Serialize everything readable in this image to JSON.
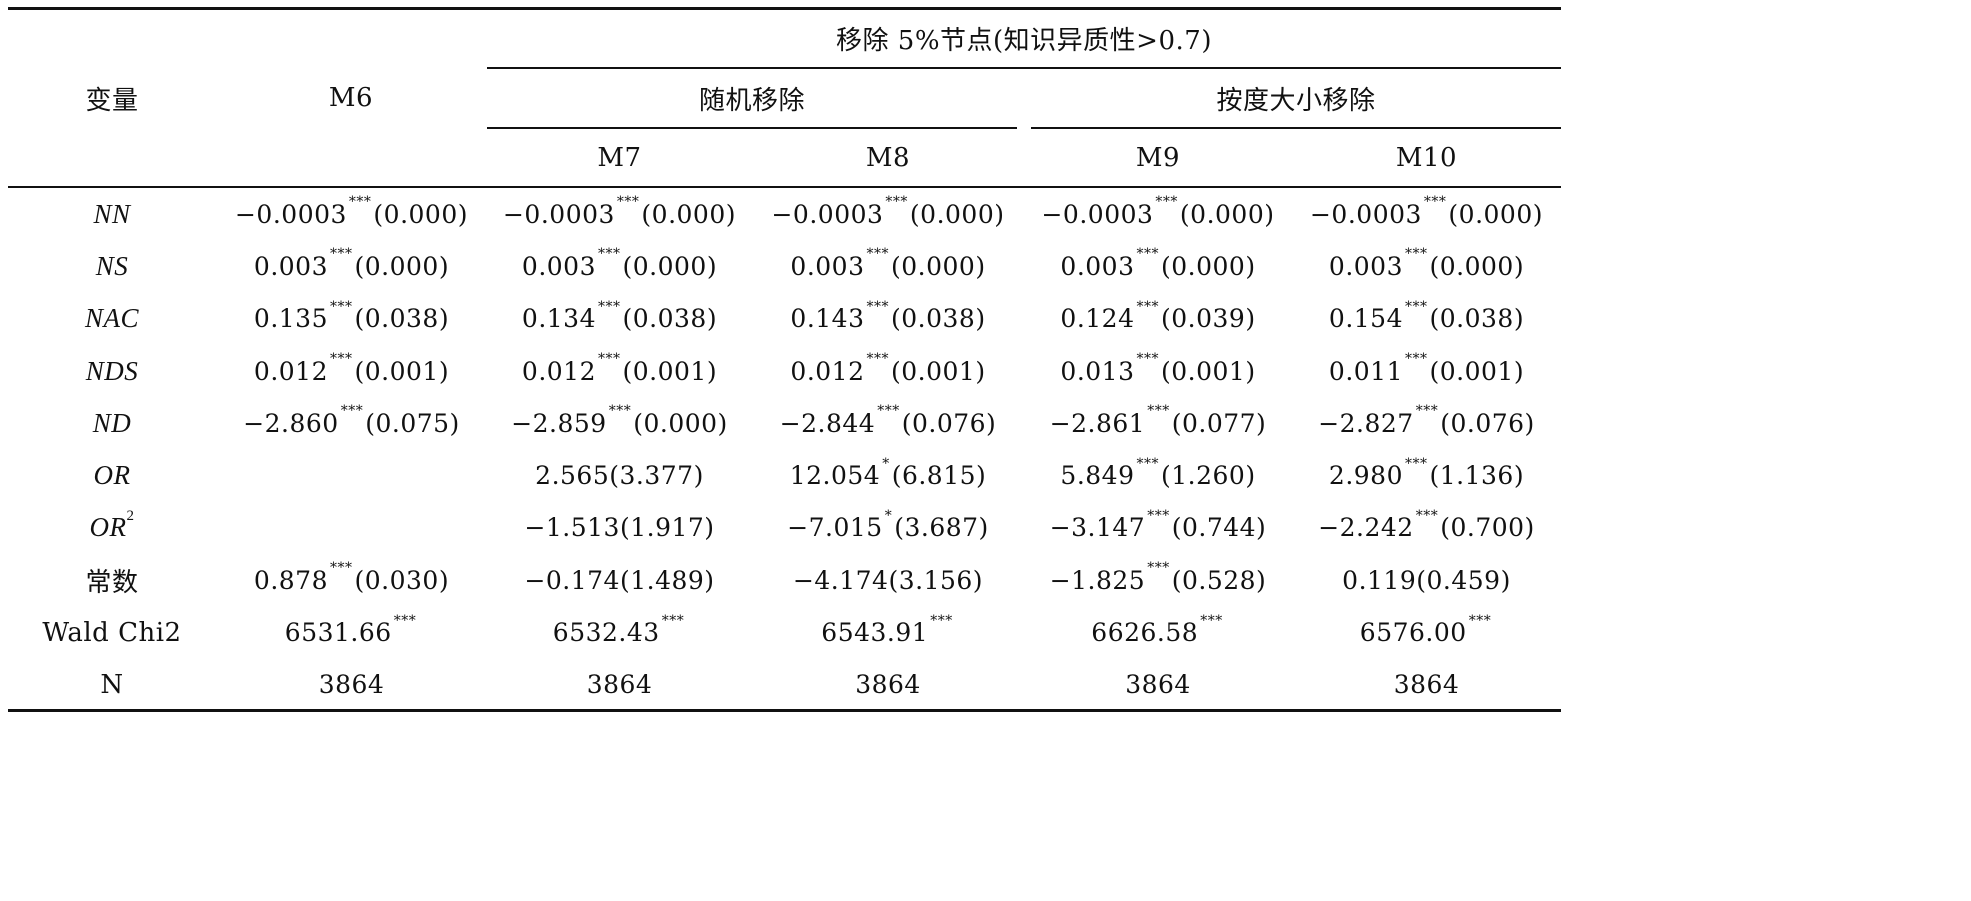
{
  "header": {
    "variable_label": "变量",
    "m6_label": "M6",
    "group_title": "移除 5%节点(知识异质性>0.7)",
    "random_label": "随机移除",
    "degree_label": "按度大小移除",
    "models": [
      "M7",
      "M8",
      "M9",
      "M10"
    ]
  },
  "rows": [
    {
      "var": "NN",
      "italic": true,
      "sup": "",
      "cells": [
        {
          "v": "−0.0003",
          "s": "***",
          "p": "(0.000)"
        },
        {
          "v": "−0.0003",
          "s": "***",
          "p": "(0.000)"
        },
        {
          "v": "−0.0003",
          "s": "***",
          "p": "(0.000)"
        },
        {
          "v": "−0.0003",
          "s": "***",
          "p": "(0.000)"
        },
        {
          "v": "−0.0003",
          "s": "***",
          "p": "(0.000)"
        }
      ]
    },
    {
      "var": "NS",
      "italic": true,
      "sup": "",
      "cells": [
        {
          "v": "0.003",
          "s": "***",
          "p": "(0.000)"
        },
        {
          "v": "0.003",
          "s": "***",
          "p": "(0.000)"
        },
        {
          "v": "0.003",
          "s": "***",
          "p": "(0.000)"
        },
        {
          "v": "0.003",
          "s": "***",
          "p": "(0.000)"
        },
        {
          "v": "0.003",
          "s": "***",
          "p": "(0.000)"
        }
      ]
    },
    {
      "var": "NAC",
      "italic": true,
      "sup": "",
      "cells": [
        {
          "v": "0.135",
          "s": "***",
          "p": "(0.038)"
        },
        {
          "v": "0.134",
          "s": "***",
          "p": "(0.038)"
        },
        {
          "v": "0.143",
          "s": "***",
          "p": "(0.038)"
        },
        {
          "v": "0.124",
          "s": "***",
          "p": "(0.039)"
        },
        {
          "v": "0.154",
          "s": "***",
          "p": "(0.038)"
        }
      ]
    },
    {
      "var": "NDS",
      "italic": true,
      "sup": "",
      "cells": [
        {
          "v": "0.012",
          "s": "***",
          "p": "(0.001)"
        },
        {
          "v": "0.012",
          "s": "***",
          "p": "(0.001)"
        },
        {
          "v": "0.012",
          "s": "***",
          "p": "(0.001)"
        },
        {
          "v": "0.013",
          "s": "***",
          "p": "(0.001)"
        },
        {
          "v": "0.011",
          "s": "***",
          "p": "(0.001)"
        }
      ]
    },
    {
      "var": "ND",
      "italic": true,
      "sup": "",
      "cells": [
        {
          "v": "−2.860",
          "s": "***",
          "p": "(0.075)"
        },
        {
          "v": "−2.859",
          "s": "***",
          "p": "(0.000)"
        },
        {
          "v": "−2.844",
          "s": "***",
          "p": "(0.076)"
        },
        {
          "v": "−2.861",
          "s": "***",
          "p": "(0.077)"
        },
        {
          "v": "−2.827",
          "s": "***",
          "p": "(0.076)"
        }
      ]
    },
    {
      "var": "OR",
      "italic": true,
      "sup": "",
      "cells": [
        {
          "v": "",
          "s": "",
          "p": ""
        },
        {
          "v": "2.565",
          "s": "",
          "p": "(3.377)"
        },
        {
          "v": "12.054",
          "s": "*",
          "p": "(6.815)"
        },
        {
          "v": "5.849",
          "s": "***",
          "p": "(1.260)"
        },
        {
          "v": "2.980",
          "s": "***",
          "p": "(1.136)"
        }
      ]
    },
    {
      "var": "OR",
      "italic": true,
      "sup": "2",
      "cells": [
        {
          "v": "",
          "s": "",
          "p": ""
        },
        {
          "v": "−1.513",
          "s": "",
          "p": "(1.917)"
        },
        {
          "v": "−7.015",
          "s": "*",
          "p": "(3.687)"
        },
        {
          "v": "−3.147",
          "s": "***",
          "p": "(0.744)"
        },
        {
          "v": "−2.242",
          "s": "***",
          "p": "(0.700)"
        }
      ]
    },
    {
      "var": "常数",
      "italic": false,
      "sup": "",
      "cells": [
        {
          "v": "0.878",
          "s": "***",
          "p": "(0.030)"
        },
        {
          "v": "−0.174",
          "s": "",
          "p": "(1.489)"
        },
        {
          "v": "−4.174",
          "s": "",
          "p": "(3.156)"
        },
        {
          "v": "−1.825",
          "s": "***",
          "p": "(0.528)"
        },
        {
          "v": "0.119",
          "s": "",
          "p": "(0.459)"
        }
      ]
    },
    {
      "var": "Wald Chi2",
      "italic": false,
      "sup": "",
      "cells": [
        {
          "v": "6531.66",
          "s": "***",
          "p": ""
        },
        {
          "v": "6532.43",
          "s": "***",
          "p": ""
        },
        {
          "v": "6543.91",
          "s": "***",
          "p": ""
        },
        {
          "v": "6626.58",
          "s": "***",
          "p": ""
        },
        {
          "v": "6576.00",
          "s": "***",
          "p": ""
        }
      ]
    },
    {
      "var": "N",
      "italic": false,
      "sup": "",
      "cells": [
        {
          "v": "3864",
          "s": "",
          "p": ""
        },
        {
          "v": "3864",
          "s": "",
          "p": ""
        },
        {
          "v": "3864",
          "s": "",
          "p": ""
        },
        {
          "v": "3864",
          "s": "",
          "p": ""
        },
        {
          "v": "3864",
          "s": "",
          "p": ""
        }
      ]
    }
  ]
}
